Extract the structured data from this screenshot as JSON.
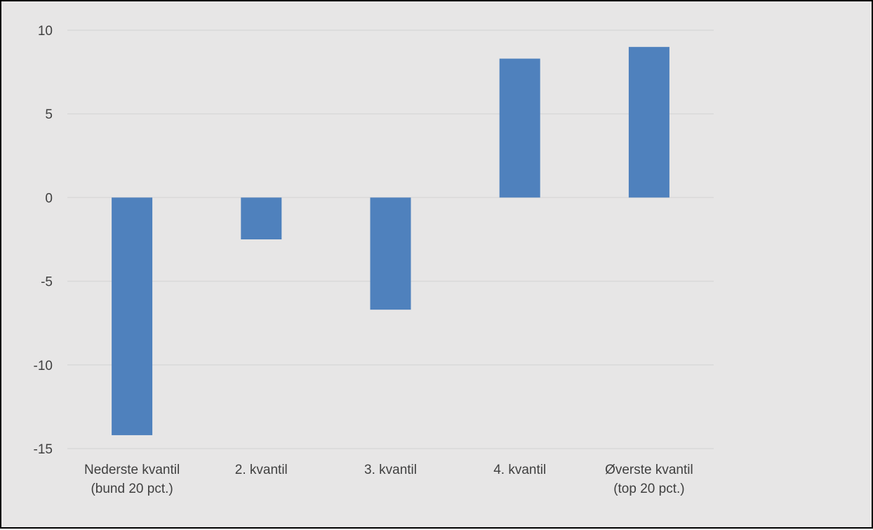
{
  "chart_data": {
    "type": "bar",
    "categories": [
      [
        "Nederste kvantil",
        "(bund 20 pct.)"
      ],
      [
        "2. kvantil"
      ],
      [
        "3. kvantil"
      ],
      [
        "4. kvantil"
      ],
      [
        "Øverste kvantil",
        "(top 20 pct.)"
      ]
    ],
    "values": [
      -14.2,
      -2.5,
      -6.7,
      8.3,
      9.0
    ],
    "ylim": [
      -15,
      10
    ],
    "yticks": [
      "10",
      "5",
      "0",
      "-5",
      "-10",
      "-15"
    ],
    "ytick_values": [
      10,
      5,
      0,
      -5,
      -10,
      -15
    ],
    "title": "",
    "xlabel": "",
    "ylabel": "",
    "grid": true,
    "legend": "none",
    "colors": {
      "bar": "#4f81bd",
      "grid": "#d9d9d9",
      "background": "#e7e6e6",
      "text": "#404040",
      "border": "#000000"
    }
  }
}
